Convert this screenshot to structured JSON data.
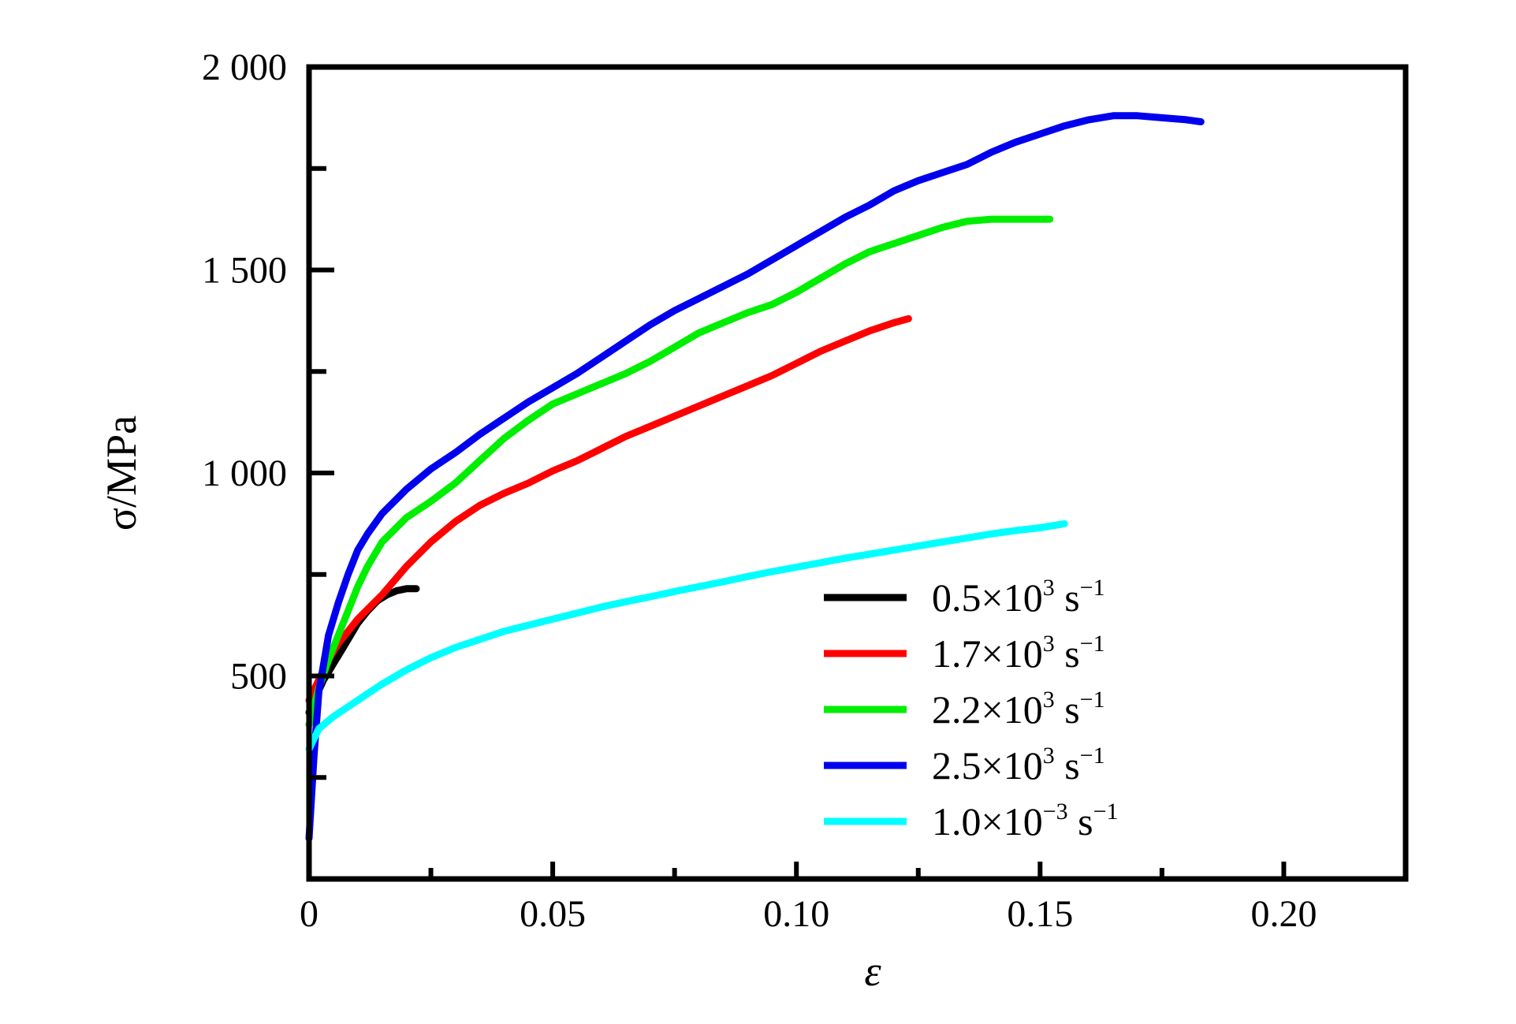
{
  "chart_data": {
    "type": "line",
    "xlabel": "ε",
    "ylabel": "σ/MPa",
    "xlim": [
      0,
      0.225
    ],
    "ylim": [
      0,
      2000
    ],
    "x_ticks": [
      {
        "value": 0,
        "label": "0"
      },
      {
        "value": 0.05,
        "label": "0.05"
      },
      {
        "value": 0.1,
        "label": "0.10"
      },
      {
        "value": 0.15,
        "label": "0.15"
      },
      {
        "value": 0.2,
        "label": "0.20"
      }
    ],
    "x_minor_ticks": [
      0.025,
      0.075,
      0.125,
      0.175
    ],
    "y_ticks": [
      {
        "value": 500,
        "label": "500"
      },
      {
        "value": 1000,
        "label": "1 000"
      },
      {
        "value": 1500,
        "label": "1 500"
      },
      {
        "value": 2000,
        "label": "2 000"
      }
    ],
    "y_minor_ticks": [
      250,
      750,
      1250,
      1750
    ],
    "grid": false,
    "legend_position": "bottom-right",
    "series": [
      {
        "name": "0.5×10³ s⁻¹",
        "legend": {
          "base": "0.5×10",
          "exp": "3",
          "unit": " s",
          "unit_exp": "−1"
        },
        "color": "#000000",
        "x": [
          0,
          0.001,
          0.002,
          0.003,
          0.004,
          0.005,
          0.006,
          0.007,
          0.008,
          0.009,
          0.01,
          0.012,
          0.014,
          0.016,
          0.018,
          0.02,
          0.022
        ],
        "y": [
          410,
          440,
          465,
          490,
          510,
          530,
          550,
          570,
          590,
          610,
          630,
          660,
          685,
          700,
          710,
          715,
          715
        ]
      },
      {
        "name": "1.7×10³ s⁻¹",
        "legend": {
          "base": "1.7×10",
          "exp": "3",
          "unit": " s",
          "unit_exp": "−1"
        },
        "color": "#ff0000",
        "x": [
          0,
          0.002,
          0.004,
          0.006,
          0.008,
          0.01,
          0.015,
          0.02,
          0.025,
          0.03,
          0.035,
          0.04,
          0.045,
          0.05,
          0.055,
          0.06,
          0.065,
          0.07,
          0.075,
          0.08,
          0.085,
          0.09,
          0.095,
          0.1,
          0.105,
          0.11,
          0.115,
          0.12,
          0.123
        ],
        "y": [
          440,
          490,
          540,
          580,
          610,
          640,
          700,
          770,
          830,
          880,
          920,
          950,
          975,
          1005,
          1030,
          1060,
          1090,
          1115,
          1140,
          1165,
          1190,
          1215,
          1240,
          1270,
          1300,
          1325,
          1350,
          1370,
          1380
        ]
      },
      {
        "name": "2.2×10³ s⁻¹",
        "legend": {
          "base": "2.2×10",
          "exp": "3",
          "unit": " s",
          "unit_exp": "−1"
        },
        "color": "#00ee00",
        "x": [
          0,
          0.002,
          0.004,
          0.006,
          0.008,
          0.01,
          0.012,
          0.015,
          0.02,
          0.025,
          0.03,
          0.035,
          0.04,
          0.045,
          0.05,
          0.055,
          0.06,
          0.065,
          0.07,
          0.075,
          0.08,
          0.085,
          0.09,
          0.095,
          0.1,
          0.105,
          0.11,
          0.115,
          0.12,
          0.125,
          0.13,
          0.135,
          0.14,
          0.145,
          0.15,
          0.152
        ],
        "y": [
          380,
          470,
          540,
          600,
          660,
          720,
          770,
          830,
          890,
          930,
          975,
          1030,
          1085,
          1130,
          1170,
          1195,
          1220,
          1245,
          1275,
          1310,
          1345,
          1370,
          1395,
          1415,
          1445,
          1480,
          1515,
          1545,
          1565,
          1585,
          1605,
          1620,
          1625,
          1625,
          1625,
          1625
        ]
      },
      {
        "name": "2.5×10³ s⁻¹",
        "legend": {
          "base": "2.5×10",
          "exp": "3",
          "unit": " s",
          "unit_exp": "−1"
        },
        "color": "#0000ee",
        "x": [
          0,
          0.001,
          0.002,
          0.004,
          0.006,
          0.008,
          0.01,
          0.012,
          0.015,
          0.02,
          0.025,
          0.03,
          0.035,
          0.04,
          0.045,
          0.05,
          0.055,
          0.06,
          0.065,
          0.07,
          0.075,
          0.08,
          0.085,
          0.09,
          0.095,
          0.1,
          0.105,
          0.11,
          0.115,
          0.12,
          0.125,
          0.13,
          0.135,
          0.14,
          0.145,
          0.15,
          0.155,
          0.16,
          0.165,
          0.17,
          0.175,
          0.18,
          0.183
        ],
        "y": [
          100,
          300,
          460,
          600,
          680,
          750,
          810,
          850,
          900,
          960,
          1010,
          1050,
          1095,
          1135,
          1175,
          1210,
          1245,
          1285,
          1325,
          1365,
          1400,
          1430,
          1460,
          1490,
          1525,
          1560,
          1595,
          1630,
          1660,
          1695,
          1720,
          1740,
          1760,
          1790,
          1815,
          1835,
          1855,
          1870,
          1880,
          1880,
          1875,
          1870,
          1865
        ]
      },
      {
        "name": "1.0×10⁻³ s⁻¹",
        "legend": {
          "base": "1.0×10",
          "exp": "−3",
          "unit": " s",
          "unit_exp": "−1"
        },
        "color": "#00ffff",
        "x": [
          0,
          0.002,
          0.005,
          0.01,
          0.015,
          0.02,
          0.025,
          0.03,
          0.035,
          0.04,
          0.045,
          0.05,
          0.055,
          0.06,
          0.065,
          0.07,
          0.075,
          0.08,
          0.085,
          0.09,
          0.095,
          0.1,
          0.105,
          0.11,
          0.115,
          0.12,
          0.125,
          0.13,
          0.135,
          0.14,
          0.145,
          0.15,
          0.155
        ],
        "y": [
          320,
          370,
          400,
          440,
          480,
          515,
          545,
          570,
          590,
          610,
          625,
          640,
          655,
          670,
          683,
          695,
          708,
          720,
          732,
          745,
          757,
          768,
          779,
          790,
          800,
          810,
          820,
          830,
          840,
          850,
          858,
          865,
          875
        ]
      }
    ]
  }
}
